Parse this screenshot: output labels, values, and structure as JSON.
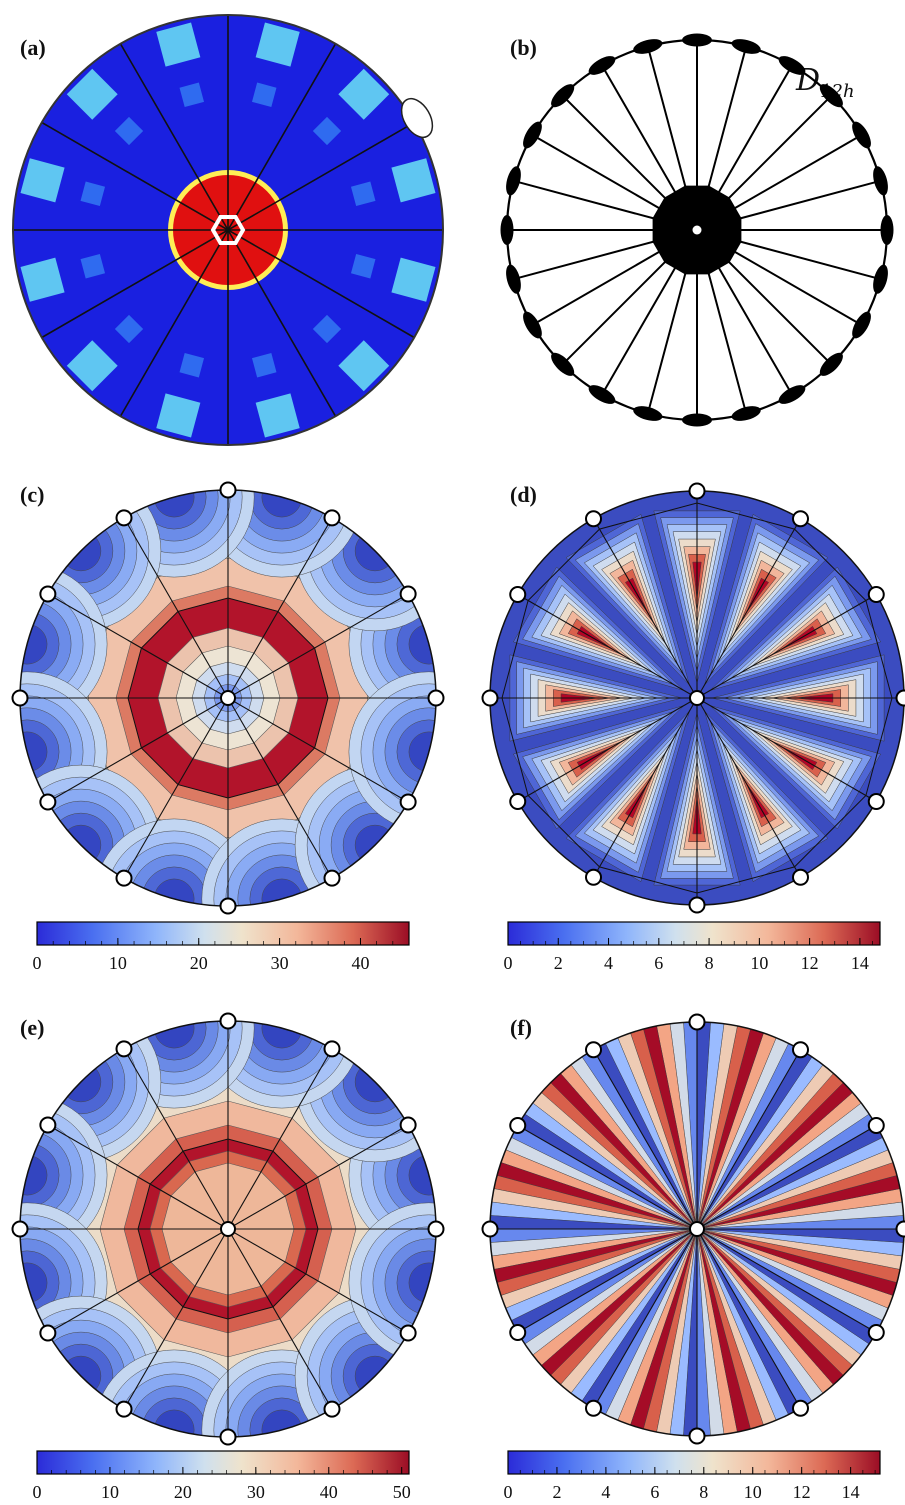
{
  "figure": {
    "panels": [
      {
        "label": "(a)",
        "type": "pole-figure-image"
      },
      {
        "label": "(b)",
        "type": "symmetry-diagram",
        "symmetry": "D",
        "subscript": "12h"
      },
      {
        "label": "(c)",
        "type": "contour",
        "colorbar": {
          "min": 0,
          "max": 46,
          "ticks": [
            "0",
            "10",
            "20",
            "30",
            "40"
          ]
        }
      },
      {
        "label": "(d)",
        "type": "contour",
        "colorbar": {
          "min": 0,
          "max": 14.8,
          "ticks": [
            "0",
            "2",
            "4",
            "6",
            "8",
            "10",
            "12",
            "14"
          ]
        }
      },
      {
        "label": "(e)",
        "type": "contour",
        "colorbar": {
          "min": 0,
          "max": 51,
          "ticks": [
            "0",
            "10",
            "20",
            "30",
            "40",
            "50"
          ]
        }
      },
      {
        "label": "(f)",
        "type": "contour",
        "colorbar": {
          "min": 0,
          "max": 15.2,
          "ticks": [
            "0",
            "2",
            "4",
            "6",
            "8",
            "10",
            "12",
            "14"
          ]
        }
      }
    ],
    "colors": {
      "deep_blue": "#1a20e0",
      "light_blue": "#5fc6f2",
      "red": "#e01010",
      "cmap": [
        "#3b4cc0",
        "#6788ee",
        "#9abbff",
        "#c9d7f0",
        "#edd1c2",
        "#f7a889",
        "#e26952",
        "#b40426",
        "#8b0a22"
      ]
    }
  }
}
